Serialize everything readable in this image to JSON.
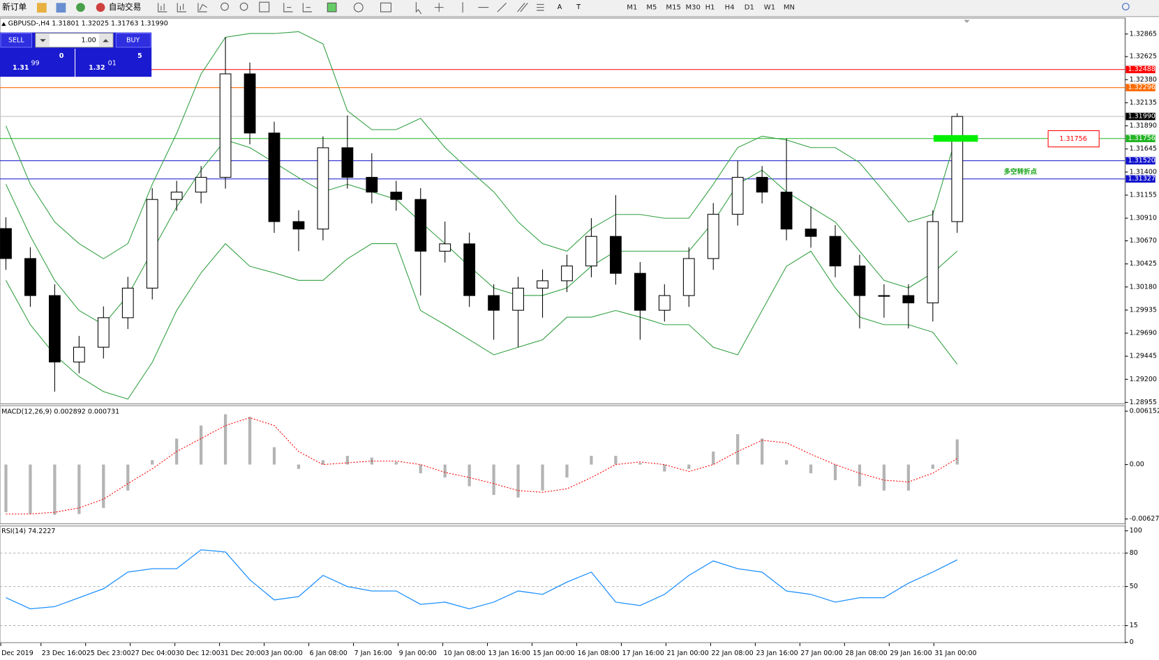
{
  "toolbar": {
    "new_order": "新订单",
    "auto_trading": "自动交易",
    "timeframes": [
      "M1",
      "M5",
      "M15",
      "M30",
      "H1",
      "H4",
      "D1",
      "W1",
      "MN"
    ]
  },
  "trade_panel": {
    "sell": "SELL",
    "buy": "BUY",
    "lot": "1.00",
    "bid": {
      "prefix": "1.31",
      "big": "99",
      "small": "0"
    },
    "ask": {
      "prefix": "1.32",
      "big": "01",
      "small": "5"
    }
  },
  "time_labels": [
    "Dec 2019",
    "23 Dec 16:00",
    "25 Dec 23:00",
    "27 Dec 04:00",
    "30 Dec 12:00",
    "31 Dec 20:00",
    "3 Jan 00:00",
    "6 Jan 08:00",
    "7 Jan 16:00",
    "9 Jan 00:00",
    "10 Jan 08:00",
    "13 Jan 16:00",
    "15 Jan 00:00",
    "16 Jan 08:00",
    "17 Jan 16:00",
    "21 Jan 00:00",
    "22 Jan 08:00",
    "23 Jan 16:00",
    "27 Jan 00:00",
    "28 Jan 08:00",
    "29 Jan 16:00",
    "31 Jan 00:00"
  ],
  "chart_data": [
    {
      "type": "candlestick",
      "title": "GBPUSD-,H4  1.31801 1.32025 1.31763 1.31990",
      "open": [
        1.308,
        1.30482,
        1.30089,
        1.29384,
        1.29541,
        1.29854,
        1.30168,
        1.31109,
        1.31187,
        1.31344,
        1.32442,
        1.31814,
        1.30874,
        1.30795,
        1.31658,
        1.31344,
        1.31187,
        1.31109,
        1.3056,
        1.30638,
        1.30089,
        1.29933,
        1.30168,
        1.30246,
        1.30403,
        1.30717,
        1.30325,
        1.29933,
        1.30089,
        1.30482,
        1.30952,
        1.31344,
        1.31187,
        1.30795,
        1.30717,
        1.30403,
        1.30089,
        1.30089,
        1.30011,
        1.30874
      ],
      "high": [
        1.3092,
        1.30602,
        1.30209,
        1.29661,
        1.29974,
        1.30288,
        1.31229,
        1.31307,
        1.31464,
        1.32834,
        1.32562,
        1.31934,
        1.30994,
        1.31778,
        1.32,
        1.316,
        1.31307,
        1.31229,
        1.30874,
        1.30758,
        1.30209,
        1.30288,
        1.30366,
        1.30523,
        1.3091,
        1.31155,
        1.30445,
        1.30209,
        1.30602,
        1.31071,
        1.3152,
        1.31464,
        1.31756,
        1.31033,
        1.30837,
        1.30523,
        1.30209,
        1.30209,
        1.30994,
        1.32025
      ],
      "low": [
        1.30362,
        1.29969,
        1.2907,
        1.29264,
        1.29421,
        1.29734,
        1.30048,
        1.30989,
        1.31067,
        1.31224,
        1.31694,
        1.30754,
        1.3056,
        1.30675,
        1.31224,
        1.31067,
        1.30989,
        1.30089,
        1.3044,
        1.29969,
        1.2962,
        1.29541,
        1.29854,
        1.30126,
        1.30283,
        1.30205,
        1.2962,
        1.29813,
        1.29969,
        1.30362,
        1.30832,
        1.31067,
        1.30675,
        1.30597,
        1.30283,
        1.2974,
        1.29854,
        1.2974,
        1.29813,
        1.30754
      ],
      "close": [
        1.30482,
        1.30089,
        1.29384,
        1.29541,
        1.29854,
        1.30168,
        1.31109,
        1.31187,
        1.31344,
        1.32442,
        1.31814,
        1.30874,
        1.30795,
        1.31658,
        1.31344,
        1.31187,
        1.31109,
        1.3056,
        1.30638,
        1.30089,
        1.29933,
        1.30168,
        1.30246,
        1.30403,
        1.30717,
        1.30325,
        1.29933,
        1.30089,
        1.30482,
        1.30952,
        1.31344,
        1.31187,
        1.30795,
        1.30717,
        1.30403,
        1.30089,
        1.30089,
        1.30011,
        1.30874,
        1.3199
      ],
      "series": [
        {
          "color": "#2e9e3e",
          "values": [
            1.3189,
            1.3127,
            1.3087,
            1.3064,
            1.3048,
            1.3064,
            1.3127,
            1.3181,
            1.3244,
            1.3283,
            1.3287,
            1.3287,
            1.3289,
            1.3276,
            1.3205,
            1.3185,
            1.3185,
            1.3197,
            1.3166,
            1.3142,
            1.3119,
            1.3087,
            1.3064,
            1.3056,
            1.308,
            1.3095,
            1.3095,
            1.3091,
            1.3091,
            1.3127,
            1.3166,
            1.3178,
            1.3174,
            1.3166,
            1.3166,
            1.315,
            1.3119,
            1.3087,
            1.3095,
            1.3181
          ]
        },
        {
          "color": "#2e9e3e",
          "values": [
            1.3127,
            1.3072,
            1.3025,
            1.2993,
            1.2978,
            1.3009,
            1.3056,
            1.3103,
            1.3142,
            1.3174,
            1.3166,
            1.315,
            1.3134,
            1.3119,
            1.3127,
            1.3119,
            1.3111,
            1.3087,
            1.3064,
            1.304,
            1.3017,
            1.3009,
            1.3009,
            1.3017,
            1.304,
            1.3056,
            1.3056,
            1.3056,
            1.3056,
            1.3087,
            1.3127,
            1.3142,
            1.3119,
            1.3103,
            1.3087,
            1.3056,
            1.3025,
            1.3017,
            1.3033,
            1.3056
          ]
        },
        {
          "color": "#2e9e3e",
          "values": [
            1.3025,
            1.2978,
            1.2946,
            1.2923,
            1.2907,
            1.2899,
            1.2938,
            1.2993,
            1.3033,
            1.3064,
            1.304,
            1.3033,
            1.3025,
            1.3025,
            1.3048,
            1.3064,
            1.3064,
            1.2993,
            1.2978,
            1.2962,
            1.2946,
            1.2954,
            1.2962,
            1.2986,
            1.2986,
            1.2993,
            1.2986,
            1.2978,
            1.2978,
            1.2954,
            1.2946,
            1.2993,
            1.304,
            1.3056,
            1.3017,
            1.2986,
            1.2978,
            1.2978,
            1.297,
            1.2936
          ]
        }
      ],
      "levels": [
        {
          "value": 1.32488,
          "label": "1.32488",
          "color": "#ff0000"
        },
        {
          "value": 1.32296,
          "label": "1.32296",
          "color": "#ff6a00"
        },
        {
          "value": 1.3199,
          "label": "1.31990",
          "color": "#000000"
        },
        {
          "value": 1.31756,
          "label": "1.31756",
          "color": "#22b422"
        },
        {
          "value": 1.3152,
          "label": "1.31520",
          "color": "#1010cc"
        },
        {
          "value": 1.31327,
          "label": "1.31327",
          "color": "#1010cc"
        }
      ],
      "annotation": "多空转折点",
      "ylim": [
        1.2894,
        1.3303
      ],
      "yticks": [
        1.32865,
        1.32625,
        {
          "value": 1.3238,
          "label": "1.32380"
        },
        1.32135,
        {
          "value": 1.3189,
          "label": "1.31890"
        },
        1.31645,
        {
          "value": 1.314,
          "label": "1.31400"
        },
        1.31155,
        {
          "value": 1.3091,
          "label": "1.30910"
        },
        {
          "value": 1.3067,
          "label": "1.30670"
        },
        1.30425,
        {
          "value": 1.3018,
          "label": "1.30180"
        },
        1.29935,
        {
          "value": 1.2969,
          "label": "1.29690"
        },
        1.29445,
        {
          "value": 1.292,
          "label": "1.29200"
        },
        1.28955
      ]
    },
    {
      "type": "macd",
      "title": "MACD(12,26,9) 0.002892 0.000731",
      "series": [
        {
          "color": "#b4b4b4",
          "values": [
            -0.0055,
            -0.0057,
            -0.0058,
            -0.0057,
            -0.005,
            -0.003,
            0.0005,
            0.003,
            0.0045,
            0.0058,
            0.0055,
            0.002,
            -0.0005,
            0.0005,
            0.001,
            0.0008,
            0.0003,
            -0.001,
            -0.0015,
            -0.0025,
            -0.0035,
            -0.0038,
            -0.003,
            -0.0015,
            0.001,
            0.001,
            0.0002,
            -0.0008,
            -0.0005,
            0.0015,
            0.0035,
            0.003,
            0.0005,
            -0.001,
            -0.0018,
            -0.0025,
            -0.003,
            -0.003,
            -0.0005,
            0.0029
          ]
        },
        {
          "color": "#ff0000",
          "values": [
            -0.0057,
            -0.0057,
            -0.0055,
            -0.005,
            -0.004,
            -0.0022,
            -0.0005,
            0.0015,
            0.003,
            0.0045,
            0.0054,
            0.0045,
            0.0015,
            0.0,
            0.0002,
            0.0004,
            0.0004,
            0.0,
            -0.0009,
            -0.0015,
            -0.0022,
            -0.003,
            -0.0032,
            -0.0028,
            -0.0015,
            0.0,
            0.0003,
            0.0,
            -0.0008,
            0.0,
            0.0015,
            0.0028,
            0.0025,
            0.0012,
            0.0,
            -0.001,
            -0.0018,
            -0.002,
            -0.001,
            0.0007
          ]
        }
      ],
      "ylim": [
        -0.006874,
        0.006748
      ],
      "yticks": [
        0.006152,
        {
          "value": 0,
          "label": "0.00"
        },
        -0.006278
      ]
    },
    {
      "type": "line",
      "title": "RSI(14) 74.2227",
      "color": "#1e90ff",
      "values": [
        40,
        30,
        32,
        40,
        48,
        63,
        66,
        66,
        83,
        81,
        56,
        38,
        41,
        60,
        50,
        46,
        46,
        34,
        36,
        30,
        36,
        46,
        43,
        54,
        63,
        36,
        33,
        43,
        60,
        73,
        66,
        63,
        46,
        43,
        36,
        40,
        40,
        53,
        63,
        74
      ],
      "ylim": [
        0,
        100
      ],
      "yticks": [
        100,
        80,
        50,
        15,
        0
      ]
    }
  ]
}
